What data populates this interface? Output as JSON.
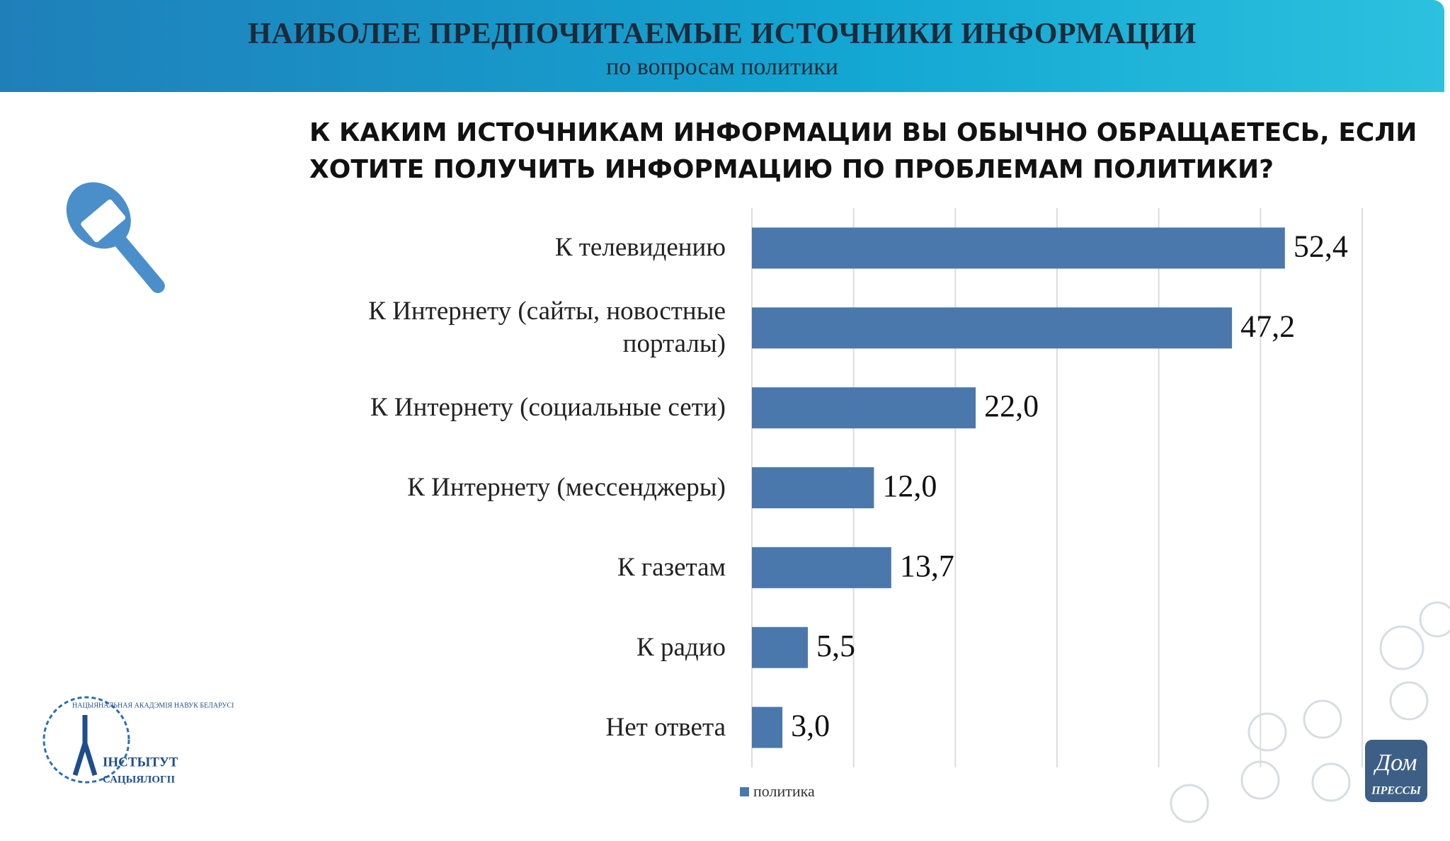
{
  "header": {
    "title": "НАИБОЛЕЕ ПРЕДПОЧИТАЕМЫЕ ИСТОЧНИКИ ИНФОРМАЦИИ",
    "subtitle": "по вопросам политики"
  },
  "logos": {
    "institute_ring": "НАЦЫЯНАЛЬНАЯ АКАДЭМІЯ НАВУК БЕЛАРУСІ",
    "institute_line1": "ІНСТЫТУТ",
    "institute_line2": "САЦЫЯЛОГІІ",
    "press_line1": "Дом",
    "press_line2": "ПРЕССЫ"
  },
  "chart_data": {
    "type": "bar",
    "orientation": "horizontal",
    "title": "К КАКИМ ИСТОЧНИКАМ ИНФОРМАЦИИ ВЫ ОБЫЧНО ОБРАЩАЕТЕСЬ, ЕСЛИ ХОТИТЕ ПОЛУЧИТЬ ИНФОРМАЦИЮ ПО ПРОБЛЕМАМ ПОЛИТИКИ?",
    "categories": [
      "К телевидению",
      "К Интернету (сайты, новостные порталы)",
      "К Интернету (социальные сети)",
      "К Интернету (мессенджеры)",
      "К газетам",
      "К радио",
      "Нет ответа"
    ],
    "series": [
      {
        "name": "политика",
        "color": "#4a78ad",
        "values": [
          52.4,
          47.2,
          22.0,
          12.0,
          13.7,
          5.5,
          3.0
        ],
        "value_labels": [
          "52,4",
          "47,2",
          "22,0",
          "12,0",
          "13,7",
          "5,5",
          "3,0"
        ]
      }
    ],
    "xlim": [
      0,
      60
    ],
    "xticks": [
      0,
      10,
      20,
      30,
      40,
      50,
      60
    ],
    "grid": true,
    "legend": "bottom"
  }
}
